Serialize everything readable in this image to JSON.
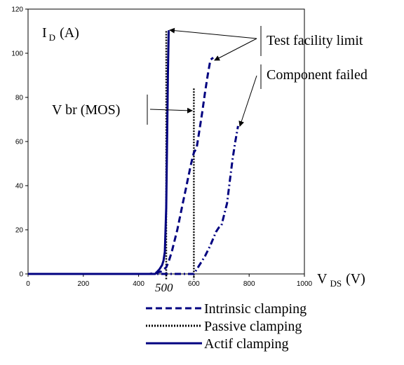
{
  "chart_data": {
    "type": "line",
    "xlim": [
      0,
      1000
    ],
    "ylim": [
      0,
      120
    ],
    "x_ticks": [
      0,
      200,
      400,
      600,
      800,
      1000
    ],
    "y_ticks": [
      0,
      20,
      40,
      60,
      80,
      100,
      120
    ],
    "grid": false,
    "legend_position": "bottom",
    "y_label": {
      "main": "I",
      "sub": "D",
      "unit": "(A)"
    },
    "x_label": {
      "main": "V",
      "sub": "DS",
      "unit": "(V)"
    },
    "colors": {
      "curve": "#000080",
      "vline": "#000000"
    },
    "series": [
      {
        "name": "Intrinsic clamping",
        "style": "dashed",
        "x": [
          0,
          440,
          480,
          500,
          510,
          520,
          530,
          540,
          550,
          560,
          570,
          580,
          590,
          600,
          610,
          620,
          630,
          640,
          650,
          660,
          670
        ],
        "y": [
          0,
          0,
          1,
          3,
          6,
          10,
          15,
          20,
          26,
          32,
          38,
          44,
          50,
          55,
          57,
          65,
          73,
          82,
          90,
          97,
          98
        ]
      },
      {
        "name": "Actif clamping",
        "style": "solid",
        "x": [
          0,
          460,
          475,
          485,
          490,
          495,
          500,
          503,
          506,
          509,
          512
        ],
        "y": [
          0,
          0,
          2,
          4,
          6,
          10,
          30,
          60,
          90,
          110,
          110
        ]
      },
      {
        "name": "Component failed",
        "style": "dashdot",
        "x": [
          0,
          600,
          620,
          640,
          660,
          680,
          690,
          700,
          710,
          720,
          730,
          740,
          750,
          760
        ],
        "y": [
          0,
          0,
          4,
          8,
          13,
          19,
          21,
          22,
          27,
          32,
          42,
          52,
          60,
          67
        ]
      }
    ],
    "vertical_lines": [
      {
        "label": "V br (MOS)",
        "x": 600,
        "y_top": 84
      },
      {
        "label": "500",
        "x": 500,
        "y_top": 110
      }
    ],
    "annotations": {
      "test_limit": "Test facility limit",
      "component_failed": "Component failed",
      "vbr": "V br (MOS)",
      "x500": "500"
    },
    "legend": [
      {
        "label": "Intrinsic clamping",
        "style": "dashed"
      },
      {
        "label": "Passive clamping",
        "style": "dotted"
      },
      {
        "label": "Actif clamping",
        "style": "solid"
      }
    ]
  }
}
